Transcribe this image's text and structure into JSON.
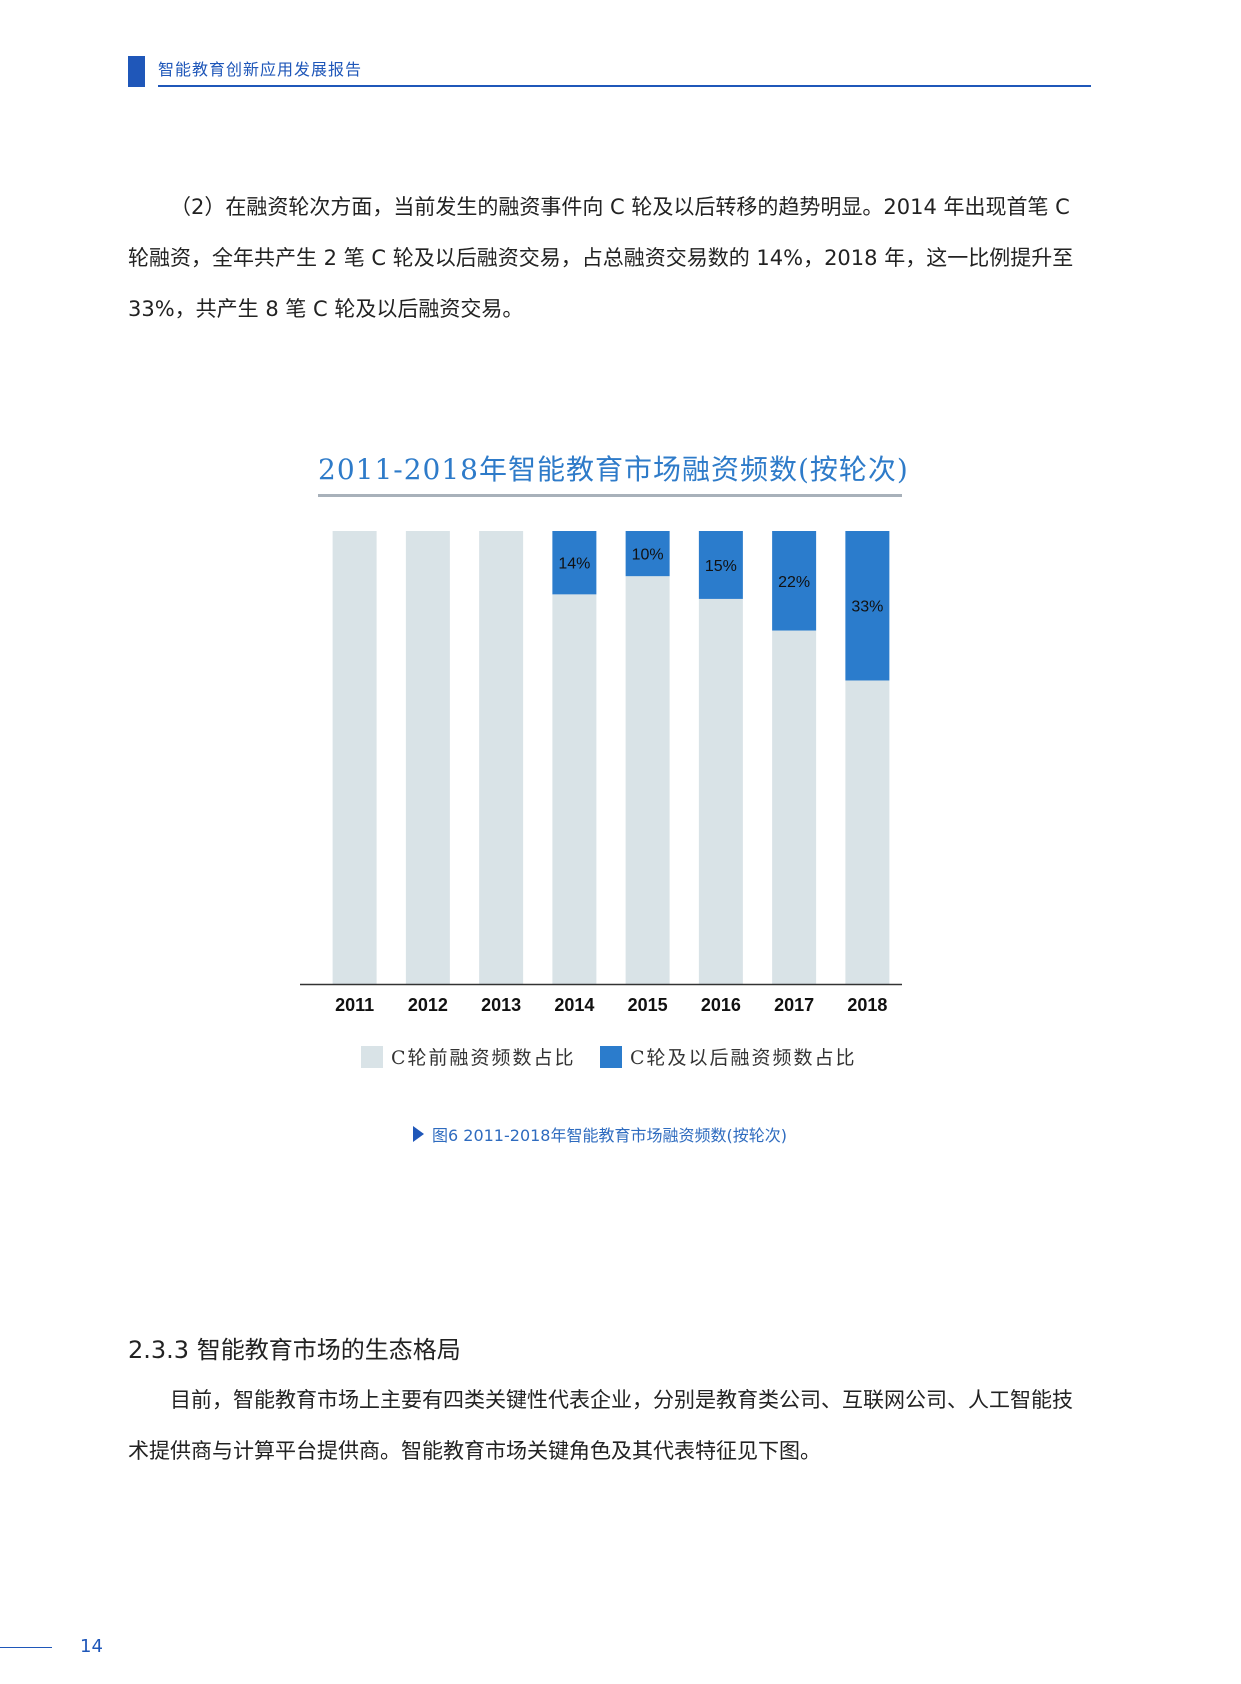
{
  "header": {
    "title": "智能教育创新应用发展报告"
  },
  "body": {
    "para1": "（2）在融资轮次方面，当前发生的融资事件向 C 轮及以后转移的趋势明显。2014 年出现首笔 C 轮融资，全年共产生 2 笔 C 轮及以后融资交易，占总融资交易数的 14%，2018 年，这一比例提升至 33%，共产生 8 笔 C 轮及以后融资交易。",
    "section_heading": "2.3.3 智能教育市场的生态格局",
    "para2": "目前，智能教育市场上主要有四类关键性代表企业，分别是教育类公司、互联网公司、人工智能技术提供商与计算平台提供商。智能教育市场关键角色及其代表特征见下图。"
  },
  "chart_data": {
    "type": "bar",
    "stacked": true,
    "normalized": true,
    "title": "2011-2018年智能教育市场融资频数(按轮次)",
    "categories": [
      "2011",
      "2012",
      "2013",
      "2014",
      "2015",
      "2016",
      "2017",
      "2018"
    ],
    "series": [
      {
        "name": "C轮前融资频数占比",
        "values": [
          100,
          100,
          100,
          86,
          90,
          85,
          78,
          67
        ],
        "color": "#d9e3e7"
      },
      {
        "name": "C轮及以后融资频数占比",
        "values": [
          0,
          0,
          0,
          14,
          10,
          15,
          22,
          33
        ],
        "color": "#2b7ccc"
      }
    ],
    "data_labels": [
      "",
      "",
      "",
      "14%",
      "10%",
      "15%",
      "22%",
      "33%"
    ],
    "ylim": [
      0,
      100
    ],
    "legend": "bottom",
    "grid": false
  },
  "caption": "图6 2011-2018年智能教育市场融资频数(按轮次)",
  "footer": {
    "page": "14"
  }
}
